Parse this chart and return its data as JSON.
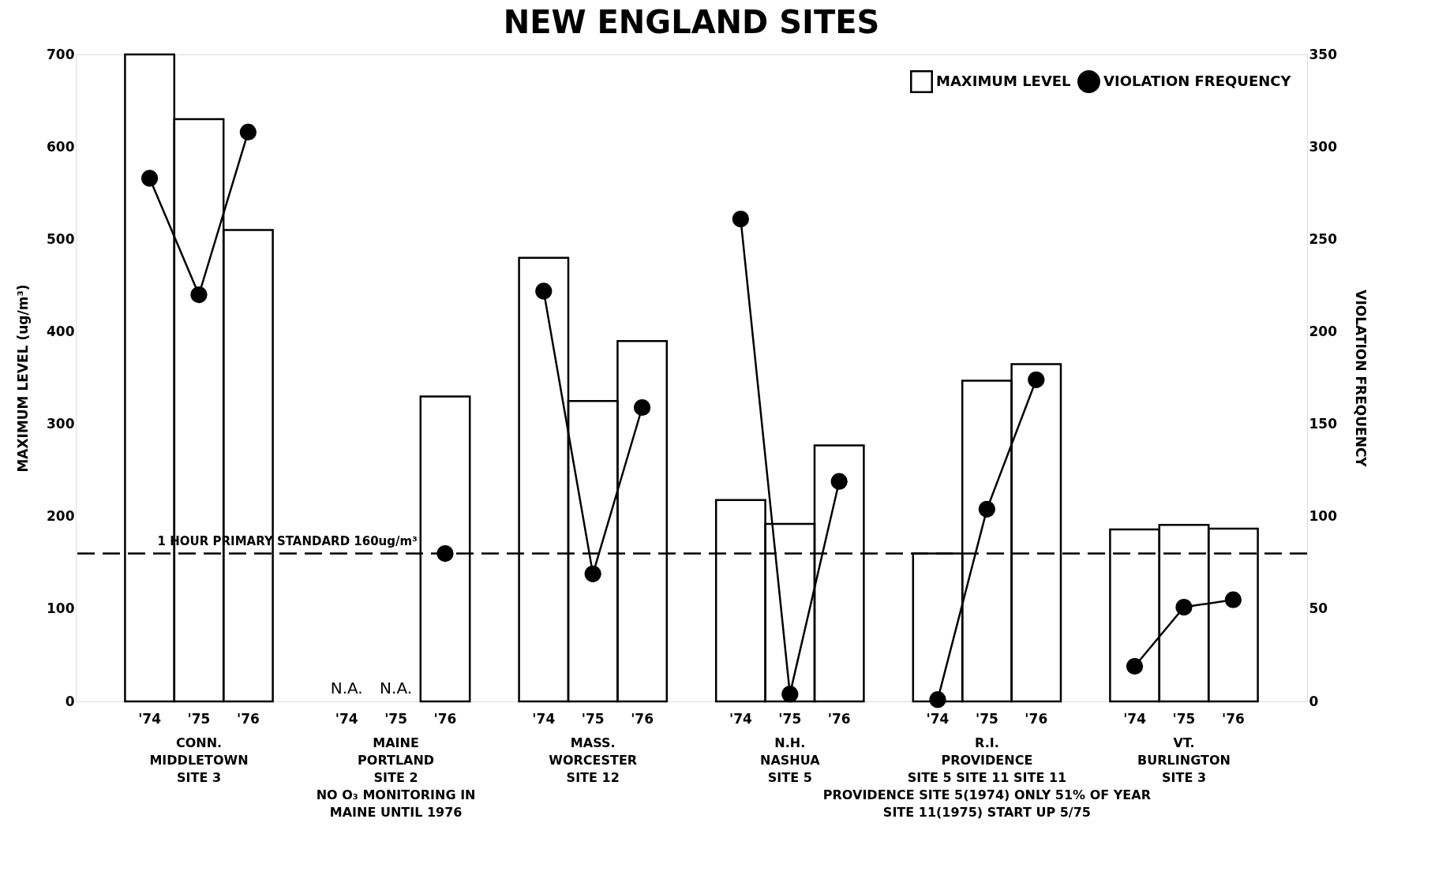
{
  "chart_data": {
    "type": "bar",
    "title": "NEW ENGLAND SITES",
    "categories": [
      "'74",
      "'75",
      "'76",
      null,
      "'74",
      "'75",
      "'76",
      null,
      "'74",
      "'75",
      "'76",
      null,
      "'74",
      "'75",
      "'76",
      null,
      "'74",
      "'75",
      "'76",
      null,
      "'74",
      "'75",
      "'76"
    ],
    "series": [
      {
        "name": "MAXIMUM LEVEL",
        "color": "#000000",
        "values": [
          700,
          630,
          510,
          null,
          null,
          null,
          330,
          null,
          480,
          325,
          390,
          null,
          218,
          192,
          277,
          null,
          160,
          347,
          365,
          null,
          186,
          191,
          187
        ],
        "value_labels": [
          null,
          null,
          null,
          null,
          "N.A.",
          "N.A.",
          null,
          null,
          null,
          null,
          null,
          null,
          null,
          null,
          null,
          null,
          null,
          null,
          null,
          null,
          null,
          null,
          null
        ]
      },
      {
        "name": "VIOLATION FREQUENCY",
        "type": "line",
        "axis": "y2",
        "marker": "circle",
        "color": "#000000",
        "values": [
          283,
          220,
          308,
          null,
          null,
          null,
          80,
          null,
          222,
          69,
          159,
          null,
          261,
          4,
          119,
          null,
          1,
          104,
          174,
          null,
          19,
          51,
          55
        ]
      }
    ],
    "ylabel": "MAXIMUM LEVEL (ug/m³)",
    "y2label": "VIOLATION FREQUENCY",
    "ylim": [
      0,
      700
    ],
    "yticks": [
      0,
      100,
      200,
      300,
      400,
      500,
      600,
      700
    ],
    "y2lim": [
      0,
      350
    ],
    "y2ticks": [
      0,
      50,
      100,
      150,
      200,
      250,
      300,
      350
    ],
    "ref_lines": [
      {
        "axis": "y",
        "value": 160,
        "label": "1 HOUR PRIMARY STANDARD 160ug/m³",
        "line_style": "dashed",
        "color": "#000000"
      }
    ],
    "annotations": [
      "CONN.\nMIDDLETOWN\nSITE 3",
      "MAINE\nPORTLAND\nSITE 2\nNO O₃ MONITORING IN\nMAINE UNTIL 1976",
      "MASS.\nWORCESTER\nSITE 12",
      "N.H.\nNASHUA\nSITE 5",
      "R.I.\nPROVIDENCE\nSITE 5 SITE 11 SITE 11\nPROVIDENCE SITE 5(1974) ONLY 51% OF YEAR\nSITE 11(1975) START UP 5/75",
      "VT.\nBURLINGTON\nSITE 3"
    ],
    "grid": false,
    "legend": "top right"
  }
}
